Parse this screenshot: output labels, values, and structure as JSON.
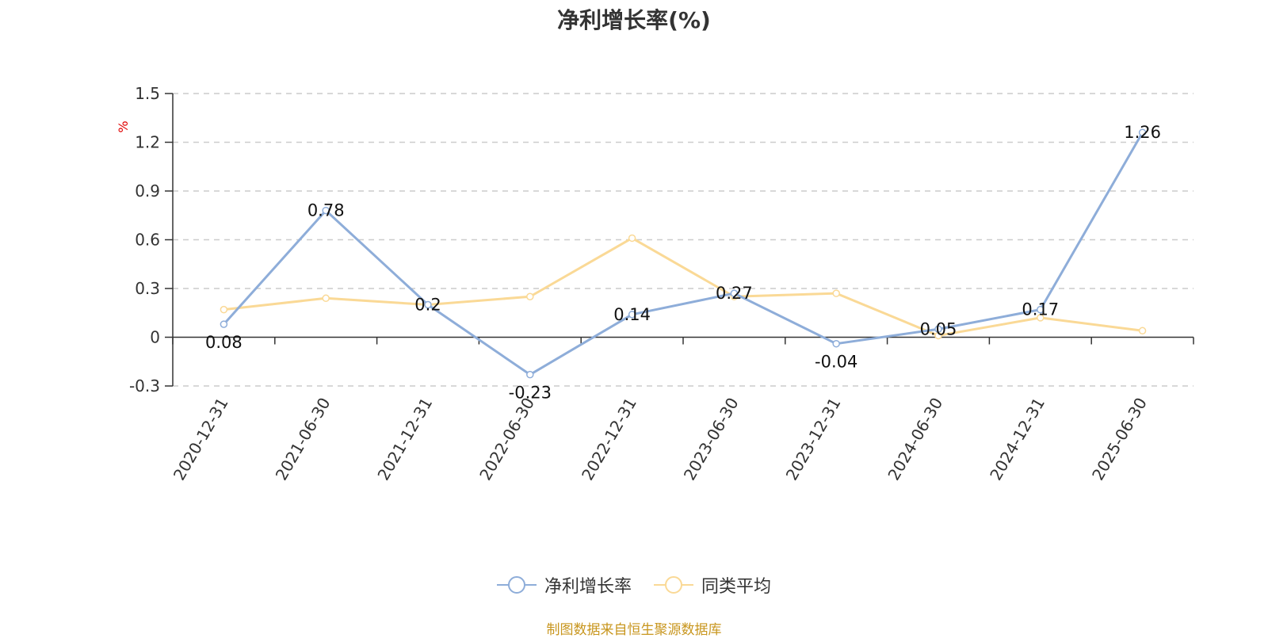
{
  "chart_data": {
    "type": "line",
    "title": "净利增长率(%)",
    "ylabel": "%",
    "ylim": [
      -0.3,
      1.5
    ],
    "yticks": [
      -0.3,
      0,
      0.3,
      0.6,
      0.9,
      1.2,
      1.5
    ],
    "ytick_labels": [
      "-0.3",
      "0",
      "0.3",
      "0.6",
      "0.9",
      "1.2",
      "1.5"
    ],
    "grid": true,
    "legend_position": "bottom",
    "categories": [
      "2020-12-31",
      "2021-06-30",
      "2021-12-31",
      "2022-06-30",
      "2022-12-31",
      "2023-06-30",
      "2023-12-31",
      "2024-06-30",
      "2024-12-31",
      "2025-06-30"
    ],
    "series": [
      {
        "name": "净利增长率",
        "color": "#8eadd9",
        "values": [
          0.08,
          0.78,
          0.2,
          -0.23,
          0.14,
          0.27,
          -0.04,
          0.05,
          0.17,
          1.26
        ],
        "labels": [
          "0.08",
          "0.78",
          "0.2",
          "-0.23",
          "0.14",
          "0.27",
          "-0.04",
          "0.05",
          "0.17",
          "1.26"
        ]
      },
      {
        "name": "同类平均",
        "color": "#fad996",
        "values": [
          0.17,
          0.24,
          0.2,
          0.25,
          0.61,
          0.25,
          0.27,
          0.01,
          0.12,
          0.04
        ]
      }
    ]
  },
  "source": "制图数据来自恒生聚源数据库"
}
